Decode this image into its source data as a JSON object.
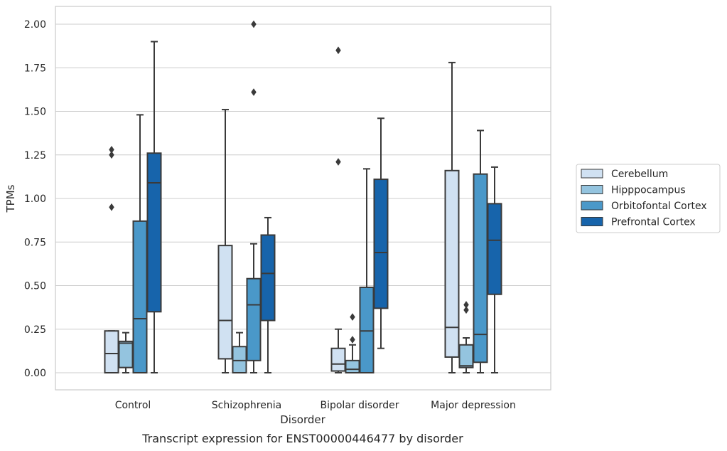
{
  "chart_data": {
    "type": "box",
    "title": "Transcript expression for ENST00000446477 by disorder",
    "xlabel": "Disorder",
    "ylabel": "TPMs",
    "ylim": [
      -0.1,
      2.1
    ],
    "yticks": [
      "0.00",
      "0.25",
      "0.50",
      "0.75",
      "1.00",
      "1.25",
      "1.50",
      "1.75",
      "2.00"
    ],
    "grid": true,
    "legend_position": "right",
    "categories": [
      "Control",
      "Schizophrenia",
      "Bipolar disorder",
      "Major depression"
    ],
    "series": [
      {
        "name": "Cerebellum",
        "color": "#d0e1f2",
        "boxes": [
          {
            "min": 0.0,
            "q1": 0.0,
            "median": 0.11,
            "q3": 0.24,
            "max": 0.24,
            "outliers": [
              0.95,
              1.25,
              1.28
            ]
          },
          {
            "min": 0.0,
            "q1": 0.08,
            "median": 0.3,
            "q3": 0.73,
            "max": 1.51,
            "outliers": []
          },
          {
            "min": 0.0,
            "q1": 0.01,
            "median": 0.05,
            "q3": 0.14,
            "max": 0.25,
            "outliers": [
              1.21,
              1.85
            ]
          },
          {
            "min": 0.0,
            "q1": 0.09,
            "median": 0.26,
            "q3": 1.16,
            "max": 1.78,
            "outliers": []
          }
        ]
      },
      {
        "name": "Hipppocampus",
        "color": "#94c4df",
        "boxes": [
          {
            "min": 0.0,
            "q1": 0.03,
            "median": 0.17,
            "q3": 0.18,
            "max": 0.23,
            "outliers": []
          },
          {
            "min": 0.0,
            "q1": 0.0,
            "median": 0.07,
            "q3": 0.15,
            "max": 0.23,
            "outliers": []
          },
          {
            "min": 0.0,
            "q1": 0.0,
            "median": 0.02,
            "q3": 0.07,
            "max": 0.16,
            "outliers": [
              0.19,
              0.32
            ]
          },
          {
            "min": 0.0,
            "q1": 0.03,
            "median": 0.04,
            "q3": 0.16,
            "max": 0.2,
            "outliers": [
              0.36,
              0.39
            ]
          }
        ]
      },
      {
        "name": "Orbitofontal Cortex",
        "color": "#4a98c9",
        "boxes": [
          {
            "min": 0.0,
            "q1": 0.0,
            "median": 0.31,
            "q3": 0.87,
            "max": 1.48,
            "outliers": []
          },
          {
            "min": 0.0,
            "q1": 0.07,
            "median": 0.39,
            "q3": 0.54,
            "max": 0.74,
            "outliers": [
              1.61,
              2.0
            ]
          },
          {
            "min": 0.0,
            "q1": 0.0,
            "median": 0.24,
            "q3": 0.49,
            "max": 1.17,
            "outliers": []
          },
          {
            "min": 0.0,
            "q1": 0.06,
            "median": 0.22,
            "q3": 1.14,
            "max": 1.39,
            "outliers": []
          }
        ]
      },
      {
        "name": "Prefrontal Cortex",
        "color": "#1764ab",
        "boxes": [
          {
            "min": 0.0,
            "q1": 0.35,
            "median": 1.09,
            "q3": 1.26,
            "max": 1.9,
            "outliers": []
          },
          {
            "min": 0.0,
            "q1": 0.3,
            "median": 0.57,
            "q3": 0.79,
            "max": 0.89,
            "outliers": []
          },
          {
            "min": 0.14,
            "q1": 0.37,
            "median": 0.69,
            "q3": 1.11,
            "max": 1.46,
            "outliers": []
          },
          {
            "min": 0.0,
            "q1": 0.45,
            "median": 0.76,
            "q3": 0.97,
            "max": 1.18,
            "outliers": []
          }
        ]
      }
    ]
  }
}
